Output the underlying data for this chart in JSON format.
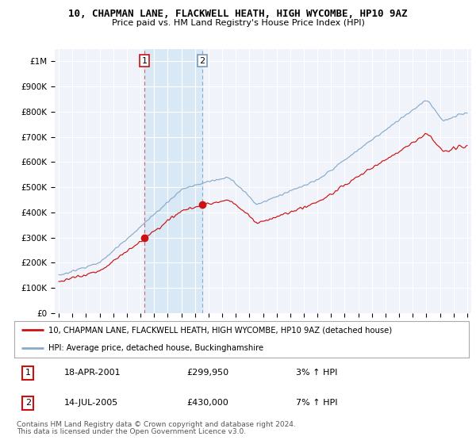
{
  "title": "10, CHAPMAN LANE, FLACKWELL HEATH, HIGH WYCOMBE, HP10 9AZ",
  "subtitle": "Price paid vs. HM Land Registry's House Price Index (HPI)",
  "ylabel_ticks": [
    "£0",
    "£100K",
    "£200K",
    "£300K",
    "£400K",
    "£500K",
    "£600K",
    "£700K",
    "£800K",
    "£900K",
    "£1M"
  ],
  "ytick_values": [
    0,
    100000,
    200000,
    300000,
    400000,
    500000,
    600000,
    700000,
    800000,
    900000,
    1000000
  ],
  "xlim_left": 1994.7,
  "xlim_right": 2025.3,
  "ylim": [
    0,
    1050000
  ],
  "legend_line1": "10, CHAPMAN LANE, FLACKWELL HEATH, HIGH WYCOMBE, HP10 9AZ (detached house)",
  "legend_line2": "HPI: Average price, detached house, Buckinghamshire",
  "sale1_year": 2001.29,
  "sale1_price": 299950,
  "sale2_year": 2005.54,
  "sale2_price": 430000,
  "sale1_label": "1",
  "sale2_label": "2",
  "sale1_date": "18-APR-2001",
  "sale1_amount": "£299,950",
  "sale1_hpi": "3% ↑ HPI",
  "sale2_date": "14-JUL-2005",
  "sale2_amount": "£430,000",
  "sale2_hpi": "7% ↑ HPI",
  "footer1": "Contains HM Land Registry data © Crown copyright and database right 2024.",
  "footer2": "This data is licensed under the Open Government Licence v3.0.",
  "line_color_red": "#cc1111",
  "line_color_blue": "#88aacc",
  "shade_color": "#d8e8f5",
  "background_color": "#ffffff",
  "plot_bg_color": "#f0f4fa"
}
